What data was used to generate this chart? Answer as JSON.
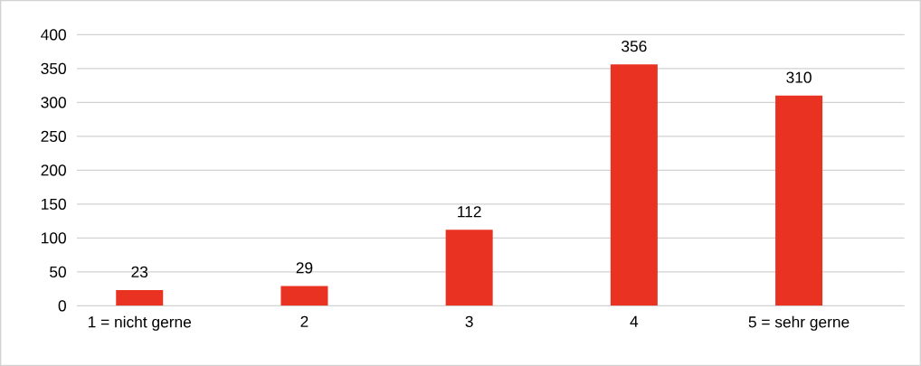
{
  "chart_data": {
    "type": "bar",
    "categories": [
      "1 = nicht gerne",
      "2",
      "3",
      "4",
      "5 = sehr gerne"
    ],
    "values": [
      23,
      29,
      112,
      356,
      310
    ],
    "color": "#ea3222",
    "ylim": [
      0,
      400
    ],
    "yticks": [
      0,
      50,
      100,
      150,
      200,
      250,
      300,
      350,
      400
    ],
    "grid": "y",
    "data_labels": true
  }
}
